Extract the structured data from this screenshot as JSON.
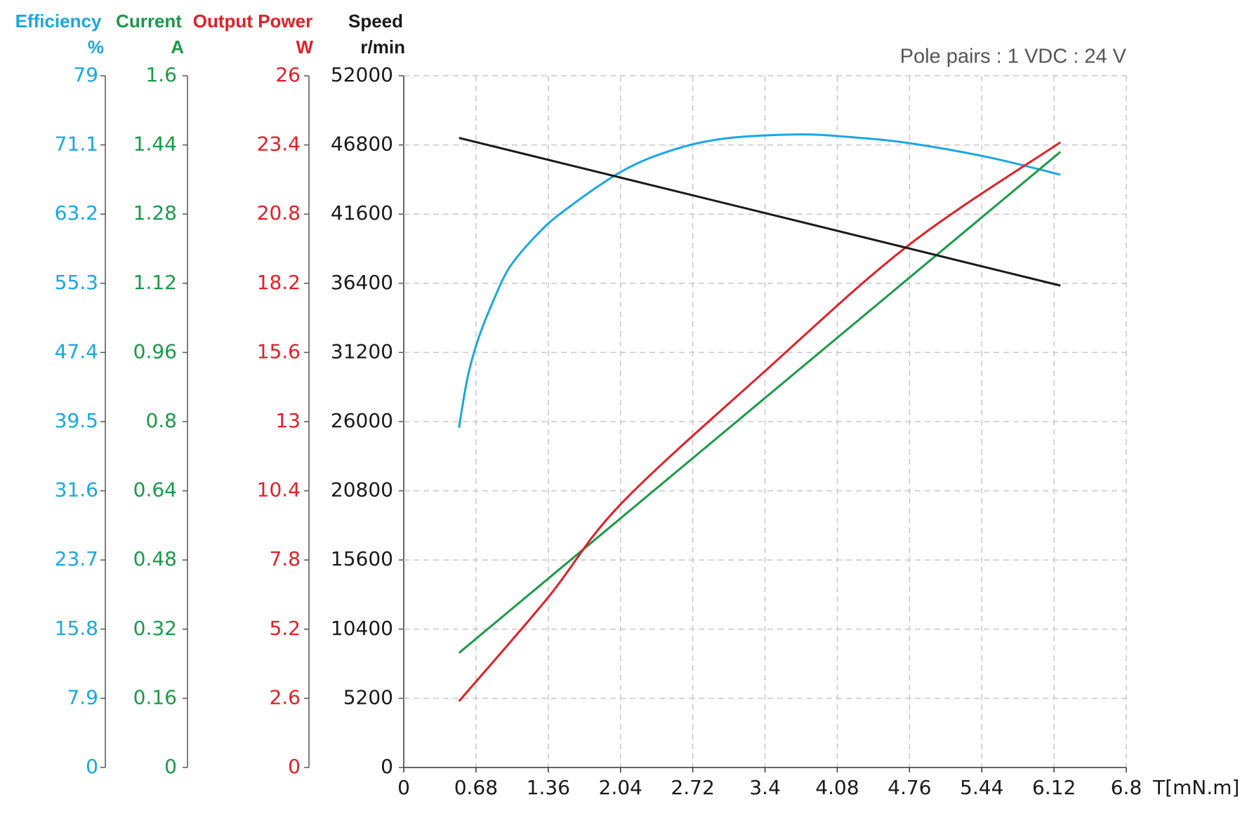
{
  "chart_data": {
    "type": "line",
    "annotation": "Pole pairs : 1   VDC : 24 V",
    "x_label": "T[mN.m]",
    "xlim": [
      0,
      6.8
    ],
    "xticks": [
      0,
      0.68,
      1.36,
      2.04,
      2.72,
      3.4,
      4.08,
      4.76,
      5.44,
      6.12,
      6.8
    ],
    "grid": true,
    "series": [
      {
        "name": "Efficiency",
        "unit": "%",
        "color": "#1aa7e0",
        "ylim": [
          0,
          79
        ],
        "yticks": [
          0,
          7.9,
          15.8,
          23.7,
          31.6,
          39.5,
          47.4,
          55.3,
          63.2,
          71.1,
          79
        ],
        "x": [
          0.52,
          0.6,
          0.7,
          0.85,
          1,
          1.25,
          1.5,
          2.04,
          2.5,
          3,
          3.7,
          4.2,
          4.76,
          5.5,
          6.18
        ],
        "values": [
          38.8,
          44.5,
          48.9,
          53.5,
          57.2,
          60.8,
          63.5,
          68,
          70.4,
          71.8,
          72.3,
          72,
          71.3,
          69.7,
          67.7
        ]
      },
      {
        "name": "Current",
        "unit": "A",
        "color": "#1a9a48",
        "ylim": [
          0,
          1.6
        ],
        "yticks": [
          0,
          0.16,
          0.32,
          0.48,
          0.64,
          0.8,
          0.96,
          1.12,
          1.28,
          1.44,
          1.6
        ],
        "x": [
          0.52,
          6.18
        ],
        "values": [
          0.265,
          1.424
        ]
      },
      {
        "name": "Output Power",
        "unit": "W",
        "color": "#e31e26",
        "ylim": [
          0,
          26
        ],
        "yticks": [
          0,
          2.6,
          5.2,
          7.8,
          10.4,
          13,
          15.6,
          18.2,
          20.8,
          23.4,
          26
        ],
        "x": [
          0.52,
          1.36,
          2.04,
          3.4,
          4.76,
          6.18
        ],
        "values": [
          2.49,
          6.4,
          9.89,
          14.9,
          19.66,
          23.5
        ]
      },
      {
        "name": "Speed",
        "unit": "r/min",
        "color": "#1a1a1a",
        "ylim": [
          0,
          52000
        ],
        "yticks": [
          0,
          5200,
          10400,
          15600,
          20800,
          26000,
          31200,
          36400,
          41600,
          46800,
          52000
        ],
        "x": [
          0.52,
          6.18
        ],
        "values": [
          47330,
          36225
        ]
      }
    ]
  }
}
